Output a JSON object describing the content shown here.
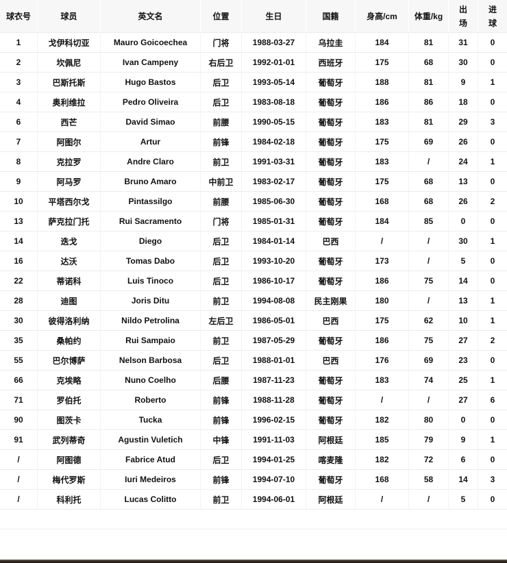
{
  "colors": {
    "header_background": "#f7f7f7",
    "row_background": "#ffffff",
    "grid_line": "#ececec",
    "text": "#111111",
    "bottom_bar": "#3a332a"
  },
  "table": {
    "columns": [
      "球衣号",
      "球员",
      "英文名",
      "位置",
      "生日",
      "国籍",
      "身高/cm",
      "体重/kg",
      "出场",
      "进球"
    ],
    "rows": [
      [
        "1",
        "戈伊科切亚",
        "Mauro Goicoechea",
        "门将",
        "1988-03-27",
        "乌拉圭",
        "184",
        "81",
        "31",
        "0"
      ],
      [
        "2",
        "坎佩尼",
        "Ivan Campeny",
        "右后卫",
        "1992-01-01",
        "西班牙",
        "175",
        "68",
        "30",
        "0"
      ],
      [
        "3",
        "巴斯托斯",
        "Hugo Bastos",
        "后卫",
        "1993-05-14",
        "葡萄牙",
        "188",
        "81",
        "9",
        "1"
      ],
      [
        "4",
        "奥利维拉",
        "Pedro Oliveira",
        "后卫",
        "1983-08-18",
        "葡萄牙",
        "186",
        "86",
        "18",
        "0"
      ],
      [
        "6",
        "西芒",
        "David Simao",
        "前腰",
        "1990-05-15",
        "葡萄牙",
        "183",
        "81",
        "29",
        "3"
      ],
      [
        "7",
        "阿图尔",
        "Artur",
        "前锋",
        "1984-02-18",
        "葡萄牙",
        "175",
        "69",
        "26",
        "0"
      ],
      [
        "8",
        "克拉罗",
        "Andre Claro",
        "前卫",
        "1991-03-31",
        "葡萄牙",
        "183",
        "/",
        "24",
        "1"
      ],
      [
        "9",
        "阿马罗",
        "Bruno Amaro",
        "中前卫",
        "1983-02-17",
        "葡萄牙",
        "175",
        "68",
        "13",
        "0"
      ],
      [
        "10",
        "平塔西尔戈",
        "Pintassilgo",
        "前腰",
        "1985-06-30",
        "葡萄牙",
        "168",
        "68",
        "26",
        "2"
      ],
      [
        "13",
        "萨克拉门托",
        "Rui Sacramento",
        "门将",
        "1985-01-31",
        "葡萄牙",
        "184",
        "85",
        "0",
        "0"
      ],
      [
        "14",
        "迭戈",
        "Diego",
        "后卫",
        "1984-01-14",
        "巴西",
        "/",
        "/",
        "30",
        "1"
      ],
      [
        "16",
        "达沃",
        "Tomas Dabo",
        "后卫",
        "1993-10-20",
        "葡萄牙",
        "173",
        "/",
        "5",
        "0"
      ],
      [
        "22",
        "蒂诺科",
        "Luis Tinoco",
        "后卫",
        "1986-10-17",
        "葡萄牙",
        "186",
        "75",
        "14",
        "0"
      ],
      [
        "28",
        "迪图",
        "Joris Ditu",
        "前卫",
        "1994-08-08",
        "民主刚果",
        "180",
        "/",
        "13",
        "1"
      ],
      [
        "30",
        "彼得洛利纳",
        "Nildo Petrolina",
        "左后卫",
        "1986-05-01",
        "巴西",
        "175",
        "62",
        "10",
        "1"
      ],
      [
        "35",
        "桑帕约",
        "Rui Sampaio",
        "前卫",
        "1987-05-29",
        "葡萄牙",
        "186",
        "75",
        "27",
        "2"
      ],
      [
        "55",
        "巴尔博萨",
        "Nelson Barbosa",
        "后卫",
        "1988-01-01",
        "巴西",
        "176",
        "69",
        "23",
        "0"
      ],
      [
        "66",
        "克埃略",
        "Nuno Coelho",
        "后腰",
        "1987-11-23",
        "葡萄牙",
        "183",
        "74",
        "25",
        "1"
      ],
      [
        "71",
        "罗伯托",
        "Roberto",
        "前锋",
        "1988-11-28",
        "葡萄牙",
        "/",
        "/",
        "27",
        "6"
      ],
      [
        "90",
        "图茨卡",
        "Tucka",
        "前锋",
        "1996-02-15",
        "葡萄牙",
        "182",
        "80",
        "0",
        "0"
      ],
      [
        "91",
        "武列蒂奇",
        "Agustin Vuletich",
        "中锋",
        "1991-11-03",
        "阿根廷",
        "185",
        "79",
        "9",
        "1"
      ],
      [
        "/",
        "阿图德",
        "Fabrice Atud",
        "后卫",
        "1994-01-25",
        "喀麦隆",
        "182",
        "72",
        "6",
        "0"
      ],
      [
        "/",
        "梅代罗斯",
        "Iuri Medeiros",
        "前锋",
        "1994-07-10",
        "葡萄牙",
        "168",
        "58",
        "14",
        "3"
      ],
      [
        "/",
        "科利托",
        "Lucas Colitto",
        "前卫",
        "1994-06-01",
        "阿根廷",
        "/",
        "/",
        "5",
        "0"
      ]
    ]
  }
}
